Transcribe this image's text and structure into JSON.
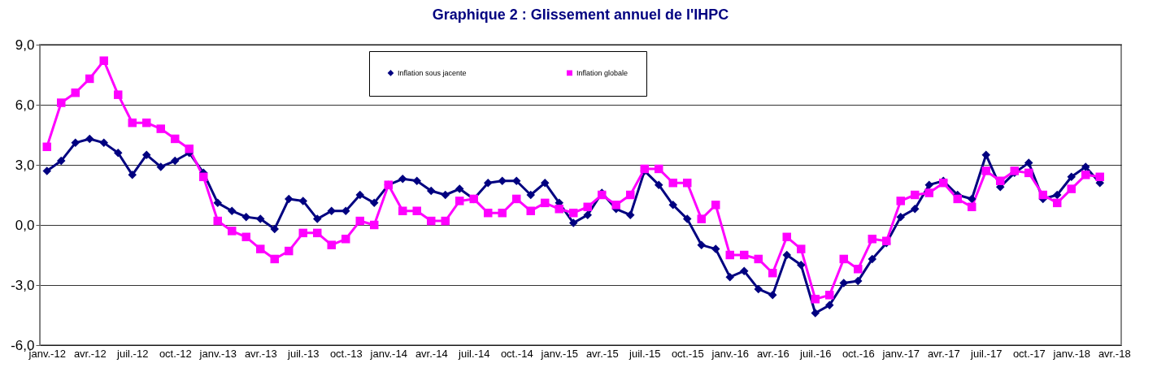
{
  "chart_data": {
    "type": "line",
    "title": "Graphique 2 : Glissement annuel de l'IHPC",
    "categories": [
      "janv.-12",
      null,
      null,
      "avr.-12",
      null,
      null,
      "juil.-12",
      null,
      null,
      "oct.-12",
      null,
      null,
      "janv.-13",
      null,
      null,
      "avr.-13",
      null,
      null,
      "juil.-13",
      null,
      null,
      "oct.-13",
      null,
      null,
      "janv.-14",
      null,
      null,
      "avr.-14",
      null,
      null,
      "juil.-14",
      null,
      null,
      "oct.-14",
      null,
      null,
      "janv.-15",
      null,
      null,
      "avr.-15",
      null,
      null,
      "juil.-15",
      null,
      null,
      "oct.-15",
      null,
      null,
      "janv.-16",
      null,
      null,
      "avr.-16",
      null,
      null,
      "juil.-16",
      null,
      null,
      "oct.-16",
      null,
      null,
      "janv.-17",
      null,
      null,
      "avr.-17",
      null,
      null,
      "juil.-17",
      null,
      null,
      "oct.-17",
      null,
      null,
      "janv.-18",
      null,
      null,
      "avr.-18"
    ],
    "series": [
      {
        "name": "Inflation sous jacente",
        "color": "#000080",
        "marker": "diamond",
        "values": [
          2.7,
          3.2,
          4.1,
          4.3,
          4.1,
          3.6,
          2.5,
          3.5,
          2.9,
          3.2,
          3.6,
          2.6,
          1.1,
          0.7,
          0.4,
          0.3,
          -0.2,
          1.3,
          1.2,
          0.3,
          0.7,
          0.7,
          1.5,
          1.1,
          2.0,
          2.3,
          2.2,
          1.7,
          1.5,
          1.8,
          1.3,
          2.1,
          2.2,
          2.2,
          1.5,
          2.1,
          1.1,
          0.1,
          0.5,
          1.6,
          0.8,
          0.5,
          2.7,
          2.0,
          1.0,
          0.3,
          -1.0,
          -1.2,
          -2.6,
          -2.3,
          -3.2,
          -3.5,
          -1.5,
          -2.0,
          -4.4,
          -4.0,
          -2.9,
          -2.8,
          -1.7,
          -0.9,
          0.4,
          0.8,
          2.0,
          2.2,
          1.5,
          1.3,
          3.5,
          1.9,
          2.6,
          3.1,
          1.3,
          1.5,
          2.4,
          2.9,
          2.1,
          null
        ]
      },
      {
        "name": "Inflation globale",
        "color": "#ff00ff",
        "marker": "square",
        "values": [
          3.9,
          6.1,
          6.6,
          7.3,
          8.2,
          6.5,
          5.1,
          5.1,
          4.8,
          4.3,
          3.8,
          2.4,
          0.2,
          -0.3,
          -0.6,
          -1.2,
          -1.7,
          -1.3,
          -0.4,
          -0.4,
          -1.0,
          -0.7,
          0.2,
          0.0,
          2.0,
          0.7,
          0.7,
          0.2,
          0.2,
          1.2,
          1.3,
          0.6,
          0.6,
          1.3,
          0.7,
          1.1,
          0.8,
          0.6,
          0.9,
          1.5,
          1.0,
          1.5,
          2.8,
          2.8,
          2.1,
          2.1,
          0.3,
          1.0,
          -1.5,
          -1.5,
          -1.7,
          -2.4,
          -0.6,
          -1.2,
          -3.7,
          -3.5,
          -1.7,
          -2.2,
          -0.7,
          -0.8,
          1.2,
          1.5,
          1.6,
          2.1,
          1.3,
          0.9,
          2.7,
          2.2,
          2.7,
          2.6,
          1.5,
          1.1,
          1.8,
          2.5,
          2.4,
          null
        ]
      }
    ],
    "ylim": [
      -6,
      9
    ],
    "yticks": [
      {
        "value": -6,
        "label": "-6,0"
      },
      {
        "value": -3,
        "label": "-3,0"
      },
      {
        "value": 0,
        "label": "0,0"
      },
      {
        "value": 3,
        "label": "3,0"
      },
      {
        "value": 6,
        "label": "6,0"
      },
      {
        "value": 9,
        "label": "9,0"
      }
    ],
    "grid": "y",
    "legend": "top"
  }
}
